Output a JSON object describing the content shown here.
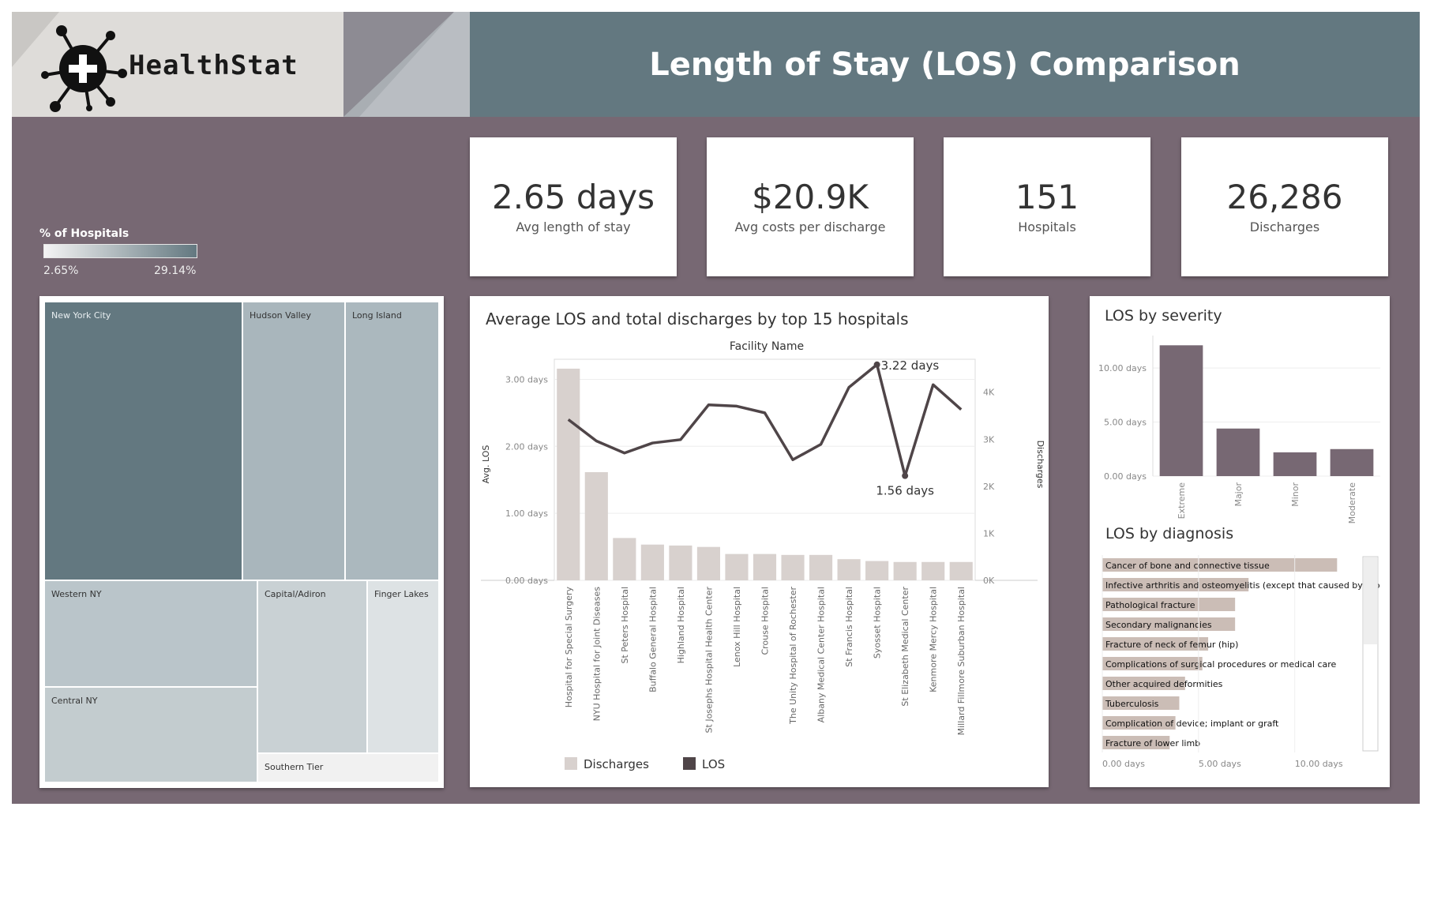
{
  "header": {
    "brand": "HealthStat",
    "title": "Length of Stay (LOS) Comparison"
  },
  "kpis": [
    {
      "value": "2.65 days",
      "label": "Avg length of stay"
    },
    {
      "value": "$20.9K",
      "label": "Avg costs per discharge"
    },
    {
      "value": "151",
      "label": "Hospitals"
    },
    {
      "value": "26,286",
      "label": "Discharges"
    }
  ],
  "map_legend": {
    "title": "% of Hospitals",
    "min": "2.65%",
    "max": "29.14%",
    "color_low": "#f4f4f4",
    "color_high": "#637880"
  },
  "treemap": {
    "regions": [
      "New York City",
      "Hudson Valley",
      "Long Island",
      "Western NY",
      "Capital/Adiron",
      "Finger Lakes",
      "Central NY",
      "Southern Tier"
    ]
  },
  "colors": {
    "background": "#776873",
    "header": "#637880",
    "bar_discharges": "#d8d1ce",
    "line_los": "#4f4548",
    "severity_bar": "#776873",
    "diagnosis_bar": "#cbbdb6"
  },
  "chart_data": [
    {
      "type": "bar",
      "title": "Average LOS and total discharges by top 15 hospitals",
      "xlabel": "Facility Name",
      "ylabel": "Avg. LOS",
      "y2label": "Discharges",
      "categories": [
        "Hospital for Special Surgery",
        "NYU Hospital for Joint Diseases",
        "St Peters Hospital",
        "Buffalo General Hospital",
        "Highland Hospital",
        "St Josephs Hospital Health Center",
        "Lenox Hill Hospital",
        "Crouse Hospital",
        "The Unity Hospital of Rochester",
        "Albany Medical Center Hospital",
        "St Francis Hospital",
        "Syosset Hospital",
        "St Elizabeth Medical Center",
        "Kenmore Mercy Hospital",
        "Millard Fillmore Suburban Hospital"
      ],
      "series": [
        {
          "name": "Discharges",
          "type": "bar",
          "axis": "right",
          "values": [
            4500,
            2300,
            900,
            760,
            740,
            710,
            560,
            560,
            540,
            540,
            450,
            410,
            390,
            390,
            390
          ]
        },
        {
          "name": "LOS",
          "type": "line",
          "axis": "left",
          "values": [
            2.4,
            2.08,
            1.9,
            2.05,
            2.1,
            2.62,
            2.6,
            2.5,
            1.8,
            2.03,
            2.88,
            3.22,
            1.56,
            2.92,
            2.55
          ]
        }
      ],
      "yticks": [
        "0.00 days",
        "1.00 days",
        "2.00 days",
        "3.00 days"
      ],
      "y2ticks": [
        "0K",
        "1K",
        "2K",
        "3K",
        "4K"
      ],
      "ylim": [
        0,
        3.3
      ],
      "y2lim": [
        0,
        4700
      ],
      "annotations": [
        "3.22 days",
        "1.56 days"
      ],
      "legend": [
        "Discharges",
        "LOS"
      ]
    },
    {
      "type": "bar",
      "title": "LOS by severity",
      "categories": [
        "Extreme",
        "Major",
        "Minor",
        "Moderate"
      ],
      "values": [
        12.1,
        4.4,
        2.2,
        2.5
      ],
      "yticks": [
        "0.00 days",
        "5.00 days",
        "10.00 days"
      ],
      "ylim": [
        0,
        13
      ]
    },
    {
      "type": "bar",
      "title": "LOS by diagnosis",
      "categories": [
        "Cancer of bone and connective tissue",
        "Infective arthritis and osteomyelitis (except that caused by tub",
        "Pathological fracture",
        "Secondary malignancies",
        "Fracture of neck of femur (hip)",
        "Complications of surgical procedures or medical care",
        "Other acquired deformities",
        "Tuberculosis",
        "Complication of device; implant or graft",
        "Fracture of lower limb"
      ],
      "values": [
        12.2,
        7.6,
        6.9,
        6.9,
        5.5,
        5.2,
        4.3,
        4.0,
        3.8,
        3.5
      ],
      "xticks": [
        "0.00 days",
        "5.00 days",
        "10.00 days"
      ],
      "xlim": [
        0,
        13.5
      ]
    }
  ]
}
